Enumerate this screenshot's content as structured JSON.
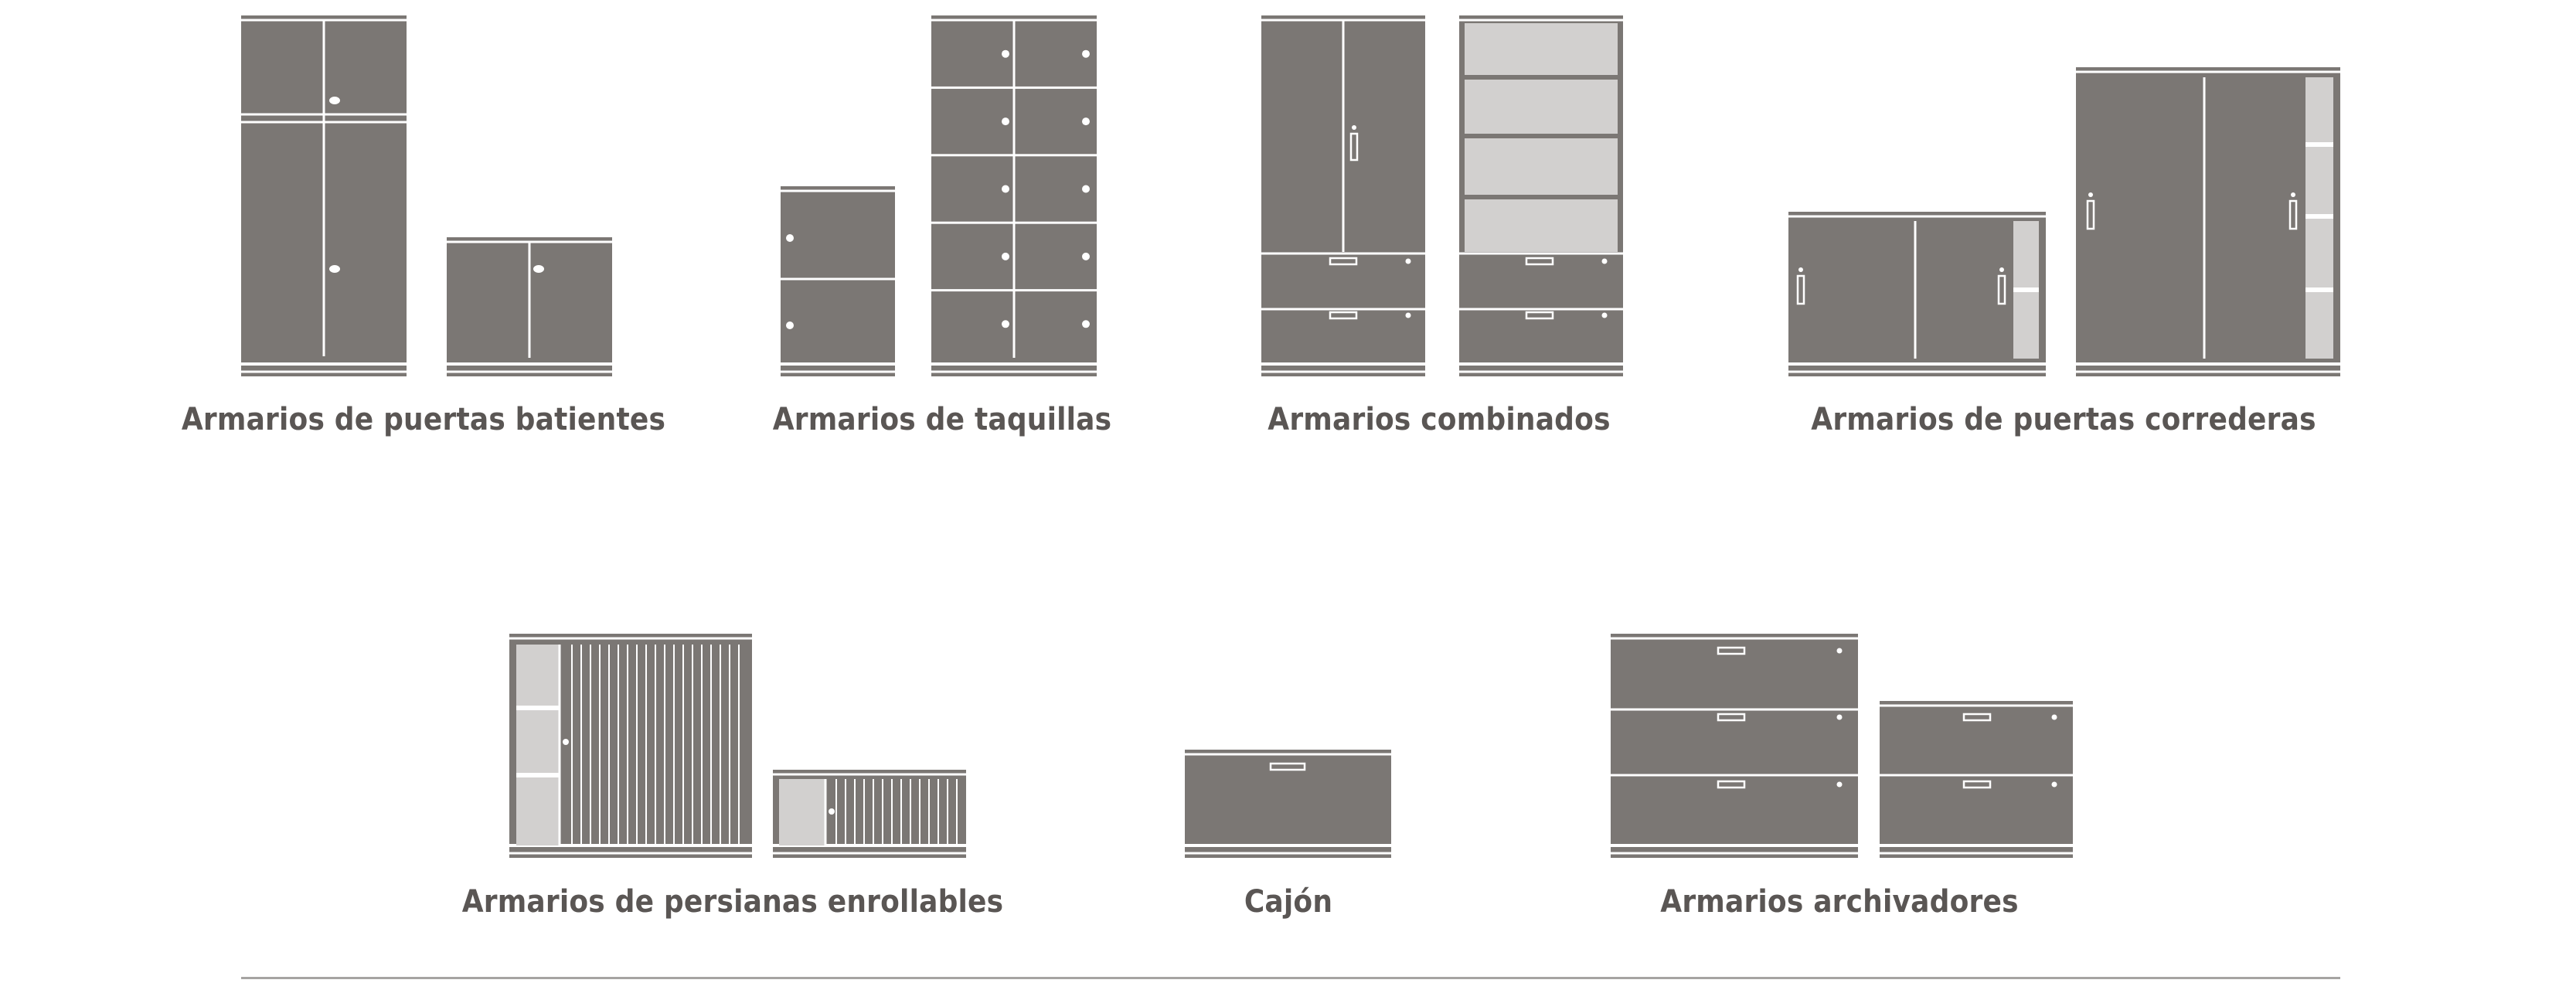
{
  "colors": {
    "body": "#7b7774",
    "light": "#d2d0cf",
    "line": "#ffffff",
    "caption": "#5a5654",
    "divider": "#a6a4a2"
  },
  "categories": [
    {
      "id": "swing",
      "label": "Armarios de puertas batientes"
    },
    {
      "id": "lockers",
      "label": "Armarios de taquillas"
    },
    {
      "id": "combined",
      "label": "Armarios combinados"
    },
    {
      "id": "sliding",
      "label": "Armarios de puertas correderas"
    },
    {
      "id": "tambour",
      "label": "Armarios de persianas enrollables"
    },
    {
      "id": "drawer",
      "label": "Cajón"
    },
    {
      "id": "filing",
      "label": "Armarios archivadores"
    }
  ],
  "cabinets": [
    {
      "id": "swing-tall",
      "category": "swing",
      "kind": "swing",
      "name": "tall-swing-door-cabinet"
    },
    {
      "id": "swing-low",
      "category": "swing",
      "kind": "swing",
      "name": "low-swing-door-cabinet"
    },
    {
      "id": "locker-2",
      "category": "lockers",
      "kind": "lockers",
      "name": "two-compartment-locker"
    },
    {
      "id": "locker-10",
      "category": "lockers",
      "kind": "lockers",
      "name": "ten-compartment-locker"
    },
    {
      "id": "combo-doors",
      "category": "combined",
      "kind": "combo",
      "name": "combined-cabinet-with-doors"
    },
    {
      "id": "combo-shelves",
      "category": "combined",
      "kind": "combo",
      "name": "combined-cabinet-with-shelves"
    },
    {
      "id": "sliding-low",
      "category": "sliding",
      "kind": "sliding",
      "name": "low-sliding-door-cabinet"
    },
    {
      "id": "sliding-tall",
      "category": "sliding",
      "kind": "sliding",
      "name": "tall-sliding-door-cabinet"
    },
    {
      "id": "tambour-tall",
      "category": "tambour",
      "kind": "tambour",
      "name": "tall-tambour-cabinet"
    },
    {
      "id": "tambour-low",
      "category": "tambour",
      "kind": "tambour",
      "name": "low-tambour-cabinet"
    },
    {
      "id": "drawer-single",
      "category": "drawer",
      "kind": "drawer",
      "name": "single-drawer-unit"
    },
    {
      "id": "filing-3",
      "category": "filing",
      "kind": "filing",
      "name": "three-drawer-filing-cabinet"
    },
    {
      "id": "filing-2",
      "category": "filing",
      "kind": "filing",
      "name": "two-drawer-filing-cabinet"
    }
  ]
}
